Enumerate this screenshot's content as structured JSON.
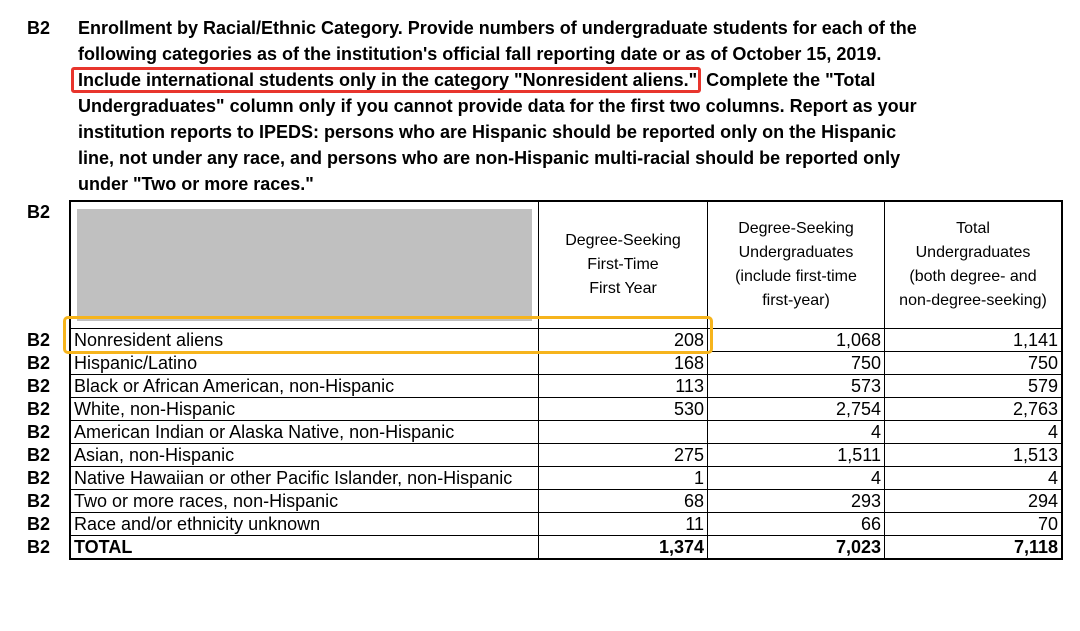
{
  "section_label": "B2",
  "instructions": {
    "before": [
      "Enrollment by Racial/Ethnic Category. Provide numbers of undergraduate students for each of the",
      "following categories as of the institution's official fall reporting date or as of October 15, 2019."
    ],
    "highlight": "Include international students only in the category \"Nonresident aliens.\"",
    "after": [
      " Complete the \"Total",
      "Undergraduates\" column only if you cannot provide data for the first two columns. Report as your",
      "institution reports to IPEDS: persons who are Hispanic should be reported only on the Hispanic",
      "line, not under any race, and persons who are non-Hispanic multi-racial should be reported only",
      "under \"Two or more races.\""
    ]
  },
  "table": {
    "header_code": "B2",
    "columns": [
      [
        "Degree-Seeking",
        "First-Time",
        "First Year"
      ],
      [
        "Degree-Seeking",
        "Undergraduates",
        "(include first-time",
        "first-year)"
      ],
      [
        "Total",
        "Undergraduates",
        "(both degree- and",
        "non-degree-seeking)"
      ]
    ],
    "rows": [
      {
        "code": "B2",
        "category": "Nonresident aliens",
        "values": [
          "208",
          "1,068",
          "1,141"
        ]
      },
      {
        "code": "B2",
        "category": "Hispanic/Latino",
        "values": [
          "168",
          "750",
          "750"
        ]
      },
      {
        "code": "B2",
        "category": "Black or African American, non-Hispanic",
        "values": [
          "113",
          "573",
          "579"
        ]
      },
      {
        "code": "B2",
        "category": "White, non-Hispanic",
        "values": [
          "530",
          "2,754",
          "2,763"
        ]
      },
      {
        "code": "B2",
        "category": "American Indian or Alaska Native, non-Hispanic",
        "values": [
          null,
          "4",
          "4"
        ]
      },
      {
        "code": "B2",
        "category": "Asian, non-Hispanic",
        "values": [
          "275",
          "1,511",
          "1,513"
        ]
      },
      {
        "code": "B2",
        "category": "Native Hawaiian or other Pacific Islander, non-Hispanic",
        "values": [
          "1",
          "4",
          "4"
        ]
      },
      {
        "code": "B2",
        "category": "Two or more races, non-Hispanic",
        "values": [
          "68",
          "293",
          "294"
        ]
      },
      {
        "code": "B2",
        "category": "Race and/or ethnicity unknown",
        "values": [
          "11",
          "66",
          "70"
        ]
      },
      {
        "code": "B2",
        "category": "TOTAL",
        "values": [
          "1,374",
          "7,023",
          "7,118"
        ]
      }
    ]
  }
}
